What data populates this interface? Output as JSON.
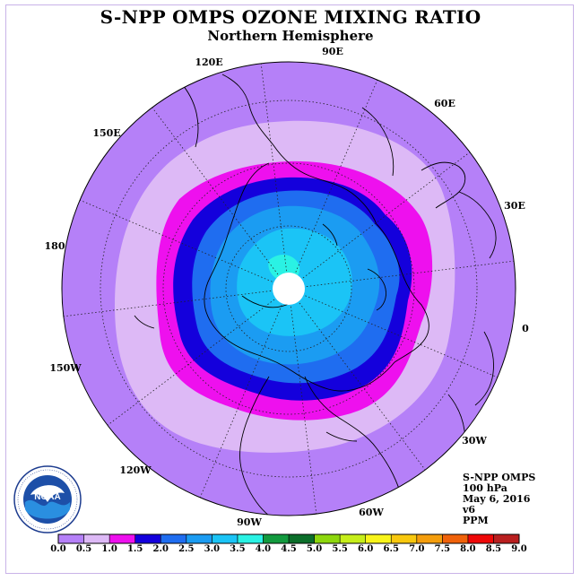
{
  "title": "S-NPP OMPS OZONE MIXING RATIO",
  "subtitle": "Northern Hemisphere",
  "longitude_labels": [
    "90E",
    "60E",
    "30E",
    "0",
    "30W",
    "60W",
    "90W",
    "120W",
    "150W",
    "180",
    "150E",
    "120E"
  ],
  "info": {
    "instrument": "S-NPP OMPS",
    "level": "100 hPa",
    "date": "May 6, 2016",
    "version": "v6",
    "units": "PPM"
  },
  "logo": {
    "icon": "noaa-logo",
    "text": "NOAA",
    "ring_text": "NATIONAL OCEANIC AND ATMOSPHERIC ADMINISTRATION · U.S. DEPARTMENT OF COMMERCE"
  },
  "colorbar": {
    "labels": [
      "0.0",
      "0.5",
      "1.0",
      "1.5",
      "2.0",
      "2.5",
      "3.0",
      "3.5",
      "4.0",
      "4.5",
      "5.0",
      "5.5",
      "6.0",
      "6.5",
      "7.0",
      "7.5",
      "8.0",
      "8.5",
      "9.0"
    ],
    "colors": [
      "#b580f8",
      "#ddb9f6",
      "#ee10ee",
      "#1400dc",
      "#1f6df0",
      "#1b9cf2",
      "#1bc4f6",
      "#2af2e4",
      "#129a3e",
      "#0b6e2a",
      "#8dd70d",
      "#c6ee1a",
      "#f8f41a",
      "#f8c80e",
      "#f49d0c",
      "#f0620a",
      "#ee0808",
      "#b91f1f",
      "#8a5a3c"
    ]
  }
}
